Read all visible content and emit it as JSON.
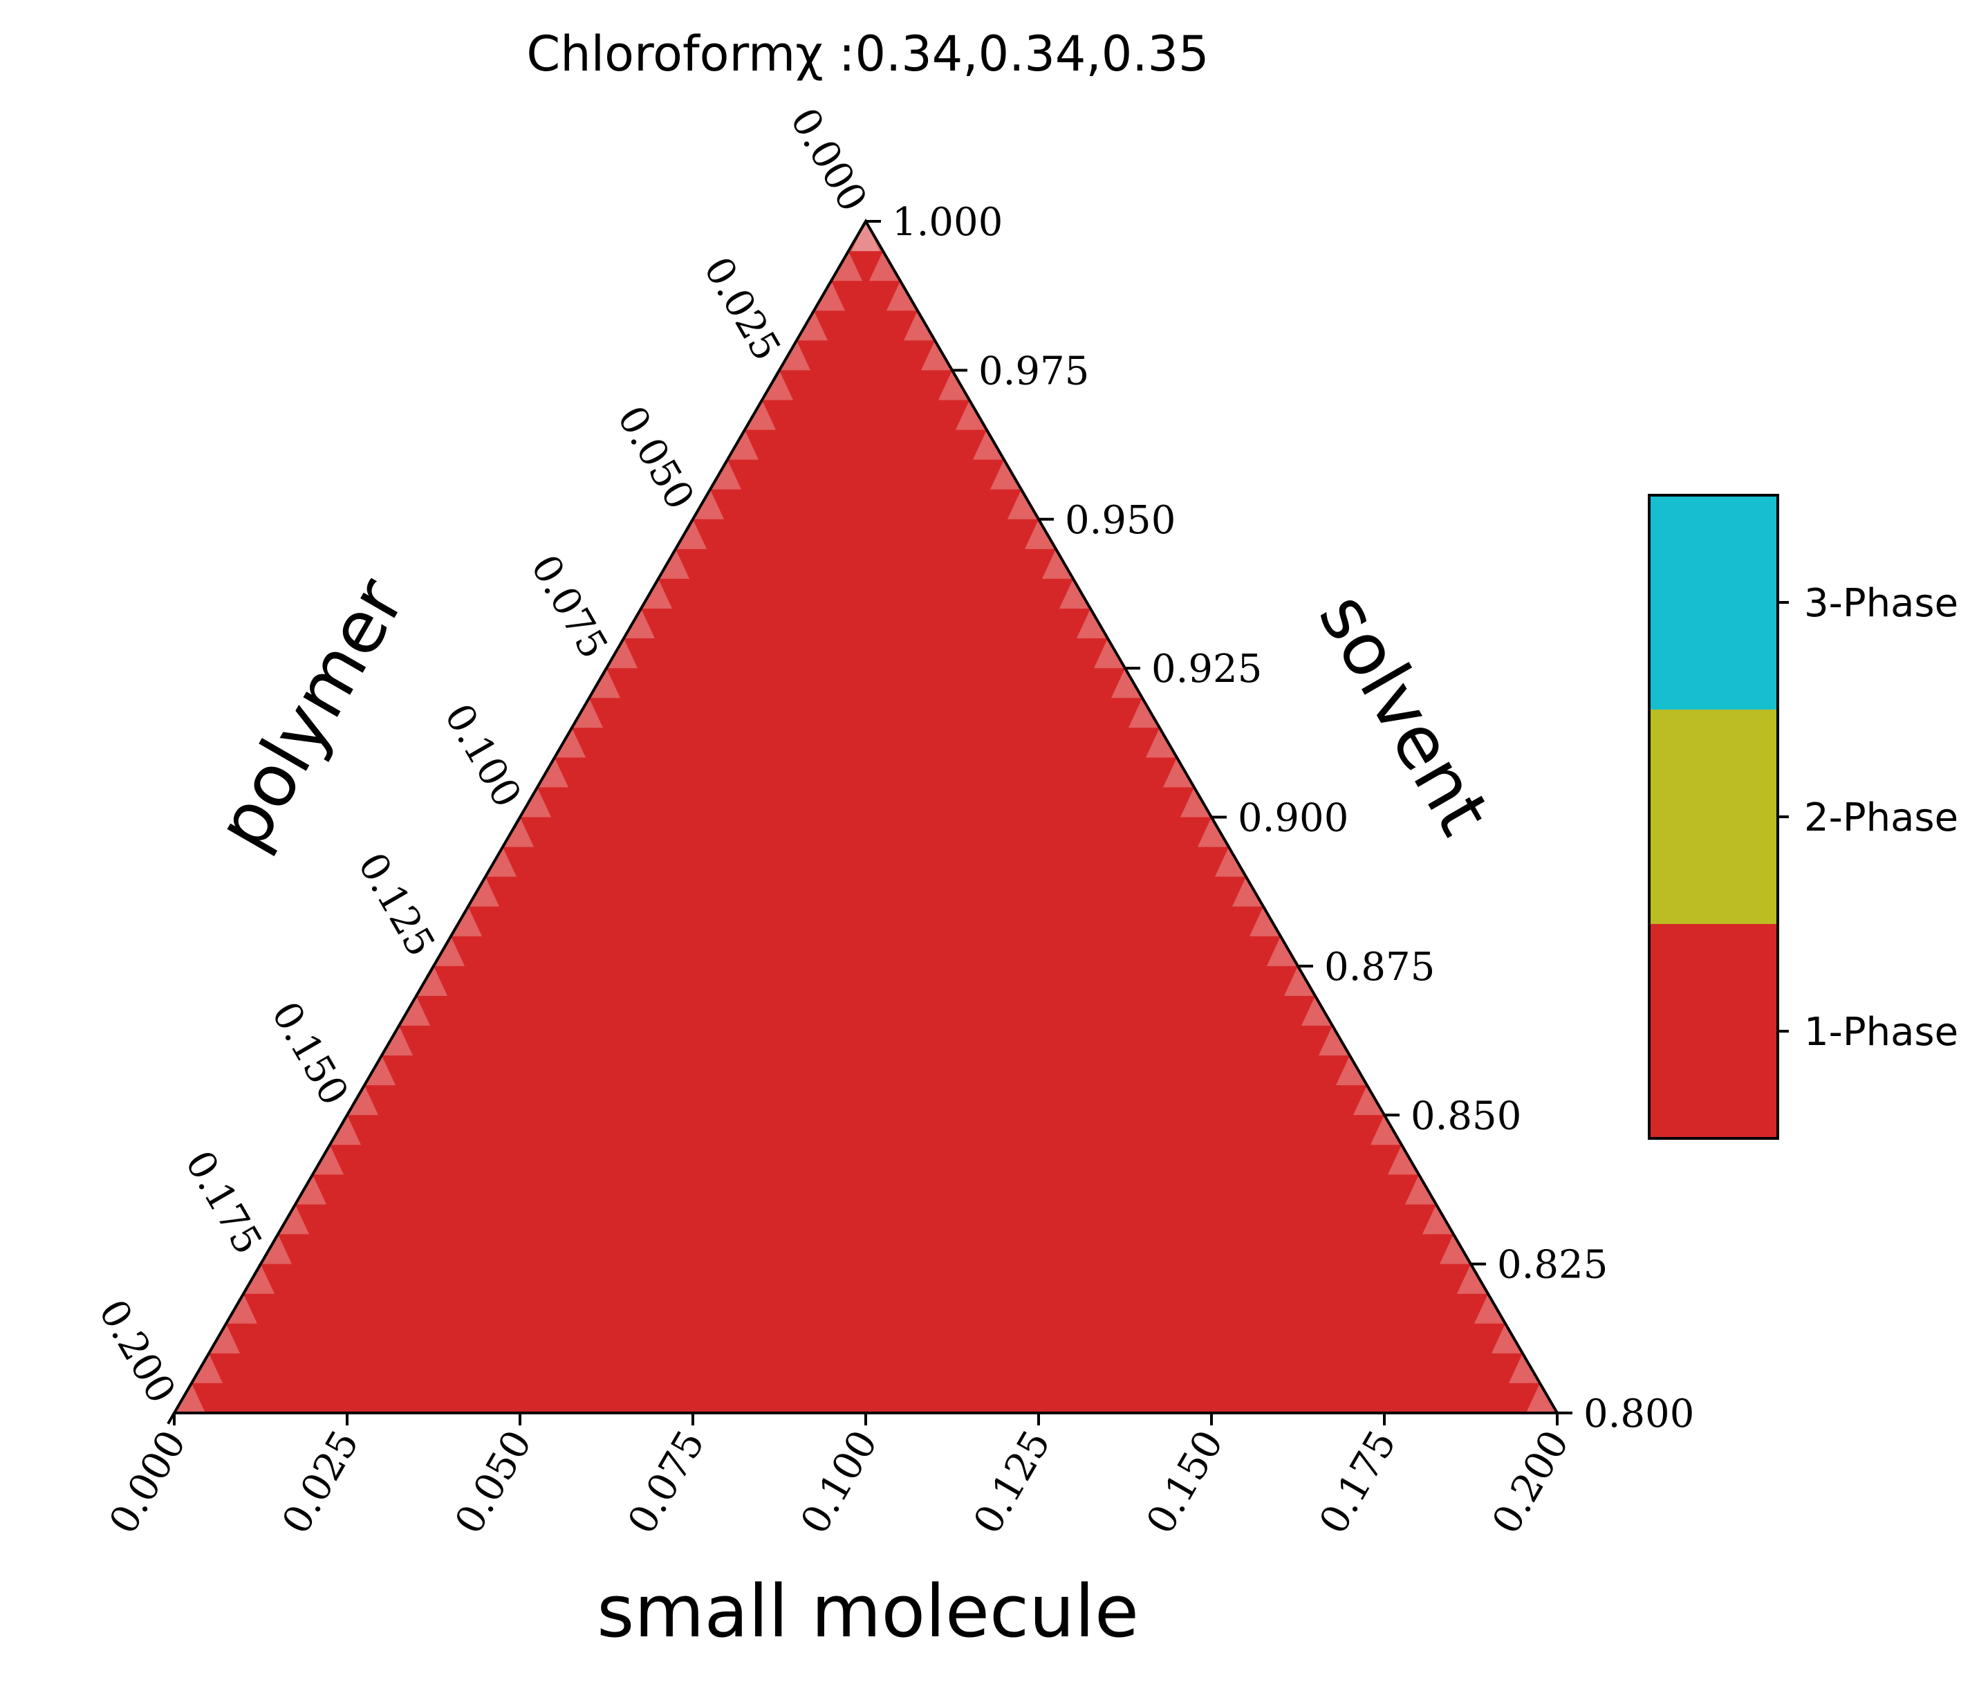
{
  "chart_data": {
    "type": "heatmap",
    "subtype": "ternary-phase-diagram",
    "title": "Chloroformχ :0.34,0.34,0.35",
    "axes": {
      "bottom": {
        "label": "small molecule",
        "range": [
          0.0,
          0.2
        ],
        "ticks": [
          "0.000",
          "0.025",
          "0.050",
          "0.075",
          "0.100",
          "0.125",
          "0.150",
          "0.175",
          "0.200"
        ]
      },
      "left": {
        "label": "polymer",
        "range": [
          0.0,
          0.2
        ],
        "ticks": [
          "0.000",
          "0.025",
          "0.050",
          "0.075",
          "0.100",
          "0.125",
          "0.150",
          "0.175",
          "0.200"
        ]
      },
      "right": {
        "label": "solvent",
        "range": [
          0.8,
          1.0
        ],
        "ticks": [
          "1.000",
          "0.975",
          "0.950",
          "0.925",
          "0.900",
          "0.875",
          "0.850",
          "0.825",
          "0.800"
        ]
      }
    },
    "legend": {
      "placement": "right",
      "entries": [
        {
          "label": "3-Phase",
          "color": "#17becf"
        },
        {
          "label": "2-Phase",
          "color": "#bcbd22"
        },
        {
          "label": "1-Phase",
          "color": "#d62728"
        }
      ]
    },
    "regions": [
      {
        "phase": "1-Phase",
        "coverage": "entire triangle",
        "color": "#d62728"
      }
    ],
    "grid": false
  }
}
